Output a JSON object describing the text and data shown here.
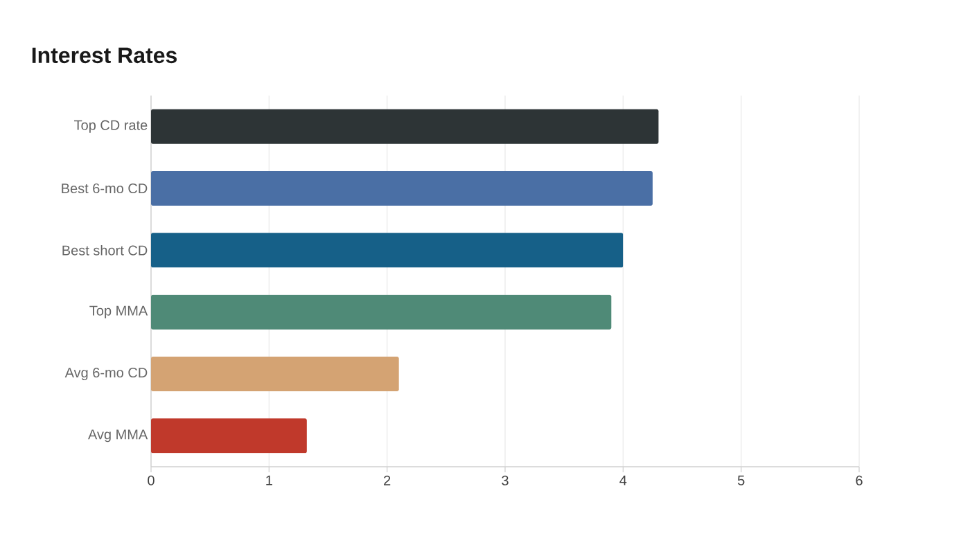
{
  "chart_data": {
    "type": "bar",
    "orientation": "horizontal",
    "title": "Interest Rates",
    "categories": [
      "Top CD rate",
      "Best 6-mo CD",
      "Best short CD",
      "Top MMA",
      "Avg 6-mo CD",
      "Avg MMA"
    ],
    "values": [
      4.3,
      4.25,
      4.0,
      3.9,
      2.1,
      1.32
    ],
    "colors": [
      "#2d3436",
      "#4a6fa5",
      "#166088",
      "#4f8a77",
      "#d4a373",
      "#c0392b"
    ],
    "xlim": [
      0,
      6
    ],
    "xticks": [
      0,
      1,
      2,
      3,
      4,
      5,
      6
    ],
    "grid": "x"
  }
}
